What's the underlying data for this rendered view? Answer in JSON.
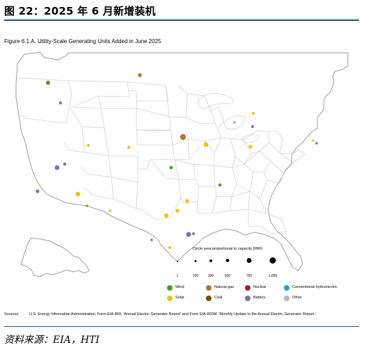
{
  "page": {
    "title": "图 22：2025 年 6 月新增装机",
    "figure_title": "Figure 6.1.A. Utility-Scale Generating Units Added in June 2025",
    "source": "资料来源：EIA，HTI"
  },
  "legend": {
    "size_title": "Circle area proportional to capacity (MW)",
    "size_labels": [
      "1",
      "100",
      "300",
      "500",
      "750",
      "1,000"
    ],
    "types": [
      {
        "name": "Wind",
        "color": "#4e9a2f"
      },
      {
        "name": "Natural gas",
        "color": "#b87333"
      },
      {
        "name": "Nuclear",
        "color": "#9b2335"
      },
      {
        "name": "Conventional hydroelectric",
        "color": "#1ea1dc"
      },
      {
        "name": "Solar",
        "color": "#f2c200"
      },
      {
        "name": "Coal",
        "color": "#6b4f12"
      },
      {
        "name": "Battery",
        "color": "#7a6fb0"
      },
      {
        "name": "Other",
        "color": "#b7b7b7"
      }
    ]
  },
  "map_data": {
    "points": [
      {
        "type": "Wind",
        "size": "small",
        "state": "Washington"
      },
      {
        "type": "Battery",
        "size": "small",
        "state": "Oregon"
      },
      {
        "type": "Natural gas",
        "size": "small",
        "state": "North Dakota"
      },
      {
        "type": "Natural gas",
        "size": "medium",
        "state": "Iowa"
      },
      {
        "type": "Solar",
        "size": "small",
        "state": "Utah"
      },
      {
        "type": "Battery",
        "size": "small",
        "state": "Nevada"
      },
      {
        "type": "Solar",
        "size": "small",
        "state": "Colorado"
      },
      {
        "type": "Battery",
        "size": "small",
        "state": "California"
      },
      {
        "type": "Battery",
        "size": "small",
        "state": "California"
      },
      {
        "type": "Battery",
        "size": "small",
        "state": "California"
      },
      {
        "type": "Solar",
        "size": "medium",
        "state": "Arizona"
      },
      {
        "type": "Natural gas",
        "size": "small",
        "state": "Arizona"
      },
      {
        "type": "Solar",
        "size": "small",
        "state": "New Mexico"
      },
      {
        "type": "Wind",
        "size": "small",
        "state": "Kansas"
      },
      {
        "type": "Solar",
        "size": "small",
        "state": "Illinois"
      },
      {
        "type": "Solar",
        "size": "small",
        "state": "Indiana"
      },
      {
        "type": "Other",
        "size": "small",
        "state": "Michigan"
      },
      {
        "type": "Solar",
        "size": "small",
        "state": "Michigan"
      },
      {
        "type": "Battery",
        "size": "small",
        "state": "Michigan"
      },
      {
        "type": "Wind",
        "size": "small",
        "state": "Arkansas"
      },
      {
        "type": "Solar",
        "size": "small",
        "state": "Arkansas"
      },
      {
        "type": "Solar",
        "size": "small",
        "state": "Texas"
      },
      {
        "type": "Solar",
        "size": "small",
        "state": "Texas"
      },
      {
        "type": "Solar",
        "size": "small",
        "state": "Texas"
      },
      {
        "type": "Battery",
        "size": "small",
        "state": "Texas"
      },
      {
        "type": "Battery",
        "size": "small",
        "state": "Texas"
      },
      {
        "type": "Battery",
        "size": "small",
        "state": "Texas"
      },
      {
        "type": "Solar",
        "size": "small",
        "state": "Texas"
      },
      {
        "type": "Solar",
        "size": "small",
        "state": "Virginia"
      },
      {
        "type": "Battery",
        "size": "small",
        "state": "Virginia"
      }
    ]
  },
  "sources": {
    "label": "Sources:",
    "text": "U.S. Energy Information Administration, Form EIA-860, 'Annual Electric Generator Report' and Form EIA-860M, 'Monthly Update to the Annual Electric Generator Report.'"
  }
}
